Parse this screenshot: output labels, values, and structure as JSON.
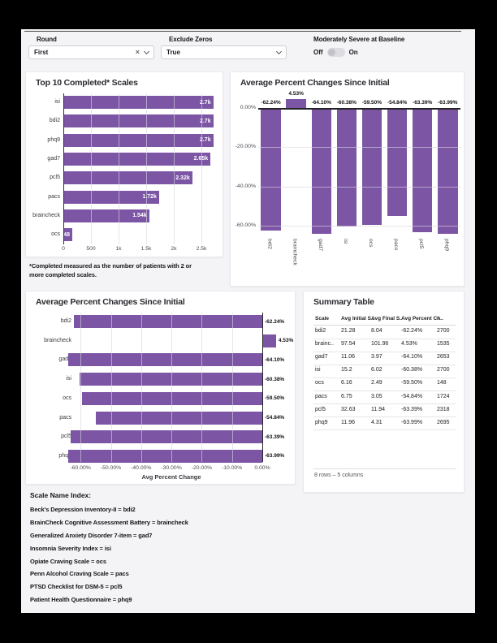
{
  "colors": {
    "accent": "#7d55a5",
    "page_bg": "#f4f4f6",
    "card_bg": "#ffffff"
  },
  "controls": {
    "round": {
      "label": "Round",
      "value": "First"
    },
    "exclude_zeros": {
      "label": "Exclude Zeros",
      "value": "True"
    },
    "moderately_severe": {
      "label": "Moderately Severe at Baseline",
      "off_label": "Off",
      "on_label": "On",
      "state": "off"
    }
  },
  "chart_data": [
    {
      "type": "bar",
      "orientation": "horizontal",
      "title": "Top 10 Completed* Scales",
      "categories": [
        "isi",
        "bdi2",
        "phq9",
        "gad7",
        "pcl5",
        "pacs",
        "braincheck",
        "ocs"
      ],
      "values": [
        2700,
        2700,
        2700,
        2650,
        2320,
        1720,
        1540,
        148
      ],
      "value_labels": [
        "2.7k",
        "2.7k",
        "2.7k",
        "2.65k",
        "2.32k",
        "1.72k",
        "1.54k",
        "148"
      ],
      "x_ticks": [
        0,
        500,
        1000,
        1500,
        2000,
        2500
      ],
      "x_tick_labels": [
        "0",
        "500",
        "1k",
        "1.5k",
        "2k",
        "2.5k"
      ],
      "xlim": [
        0,
        2800
      ],
      "grid": true
    },
    {
      "type": "bar",
      "orientation": "vertical",
      "title": "Average Percent Changes Since Initial",
      "categories": [
        "bdi2",
        "braincheck",
        "gad7",
        "isi",
        "ocs",
        "pacs",
        "pcl5",
        "phq9"
      ],
      "values": [
        -62.24,
        4.53,
        -64.1,
        -60.38,
        -59.5,
        -54.84,
        -63.39,
        -63.99
      ],
      "value_labels": [
        "-62.24%",
        "4.53%",
        "-64.10%",
        "-60.38%",
        "-59.50%",
        "-54.84%",
        "-63.39%",
        "-63.99%"
      ],
      "y_ticks": [
        0,
        -20,
        -40,
        -60
      ],
      "y_tick_labels": [
        "0.00%",
        "-20.00%",
        "-40.00%",
        "-60.00%"
      ],
      "ylim": [
        -68,
        8
      ],
      "grid": true
    },
    {
      "type": "bar",
      "orientation": "horizontal",
      "title": "Average Percent Changes Since Initial",
      "xlabel": "Avg Percent Change",
      "categories": [
        "bdi2",
        "braincheck",
        "gad7",
        "isi",
        "ocs",
        "pacs",
        "pcl5",
        "phq9"
      ],
      "values": [
        -62.24,
        4.53,
        -64.1,
        -60.38,
        -59.5,
        -54.84,
        -63.39,
        -63.99
      ],
      "value_labels": [
        "-62.24%",
        "4.53%",
        "-64.10%",
        "-60.38%",
        "-59.50%",
        "-54.84%",
        "-63.39%",
        "-63.99%"
      ],
      "x_ticks": [
        -60,
        -50,
        -40,
        -30,
        -20,
        -10,
        0
      ],
      "x_tick_labels": [
        "-60.00%",
        "-50.00%",
        "-40.00%",
        "-30.00%",
        "-20.00%",
        "-10.00%",
        "0.00%"
      ],
      "xlim": [
        -66,
        6
      ],
      "grid": true
    }
  ],
  "summary_table": {
    "title": "Summary Table",
    "columns": [
      "Scale",
      "Avg Initial S..",
      "Avg Final S..",
      "Avg Percent Ch..",
      "n"
    ],
    "rows": [
      [
        "bdi2",
        "21.28",
        "8.04",
        "-62.24%",
        "2700"
      ],
      [
        "brainc..",
        "97.54",
        "101.96",
        "4.53%",
        "1535"
      ],
      [
        "gad7",
        "11.06",
        "3.97",
        "-64.10%",
        "2653"
      ],
      [
        "isi",
        "15.2",
        "6.02",
        "-60.38%",
        "2700"
      ],
      [
        "ocs",
        "6.16",
        "2.49",
        "-59.50%",
        "148"
      ],
      [
        "pacs",
        "6.75",
        "3.05",
        "-54.84%",
        "1724"
      ],
      [
        "pcl5",
        "32.63",
        "11.94",
        "-63.39%",
        "2318"
      ],
      [
        "phq9",
        "11.96",
        "4.31",
        "-63.99%",
        "2695"
      ]
    ],
    "footer": "8 rows – 5 columns"
  },
  "footnote": "*Completed measured as the number of patients with 2 or more completed scales.",
  "scale_index": {
    "heading": "Scale Name Index:",
    "items": [
      "Beck's Depression Inventory-II = bdi2",
      "BrainCheck Cognitive Assessment Battery = braincheck",
      "Generalized Anxiety Disorder 7-item = gad7",
      "Insomnia Severity Index = isi",
      "Opiate Craving Scale = ocs",
      "Penn Alcohol Craving Scale = pacs",
      "PTSD Checklist for DSM-5 = pcl5",
      "Patient Health Questionnaire = phq9"
    ]
  }
}
